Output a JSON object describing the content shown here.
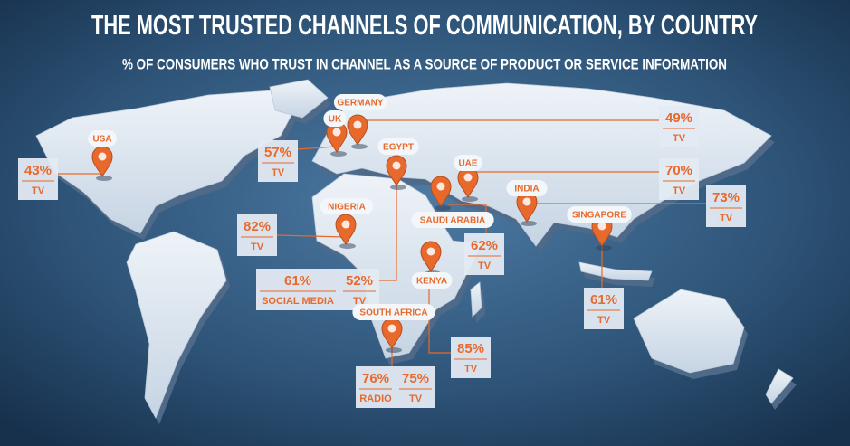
{
  "header": {
    "title": "THE MOST TRUSTED CHANNELS OF COMMUNICATION, BY COUNTRY",
    "subtitle": "% OF CONSUMERS WHO TRUST IN CHANNEL AS A SOURCE OF PRODUCT OR SERVICE INFORMATION"
  },
  "locations": [
    {
      "country": "USA",
      "stats": [
        {
          "percent": "43%",
          "channel": "TV"
        }
      ]
    },
    {
      "country": "UK",
      "stats": [
        {
          "percent": "57%",
          "channel": "TV"
        }
      ]
    },
    {
      "country": "GERMANY",
      "stats": [
        {
          "percent": "49%",
          "channel": "TV"
        }
      ]
    },
    {
      "country": "EGYPT",
      "stats": [
        {
          "percent": "61%",
          "channel": "SOCIAL MEDIA"
        },
        {
          "percent": "52%",
          "channel": "TV"
        }
      ]
    },
    {
      "country": "UAE",
      "stats": [
        {
          "percent": "70%",
          "channel": "TV"
        }
      ]
    },
    {
      "country": "SAUDI ARABIA",
      "stats": [
        {
          "percent": "62%",
          "channel": "TV"
        }
      ]
    },
    {
      "country": "INDIA",
      "stats": [
        {
          "percent": "73%",
          "channel": "TV"
        }
      ]
    },
    {
      "country": "SINGAPORE",
      "stats": [
        {
          "percent": "61%",
          "channel": "TV"
        }
      ]
    },
    {
      "country": "NIGERIA",
      "stats": [
        {
          "percent": "82%",
          "channel": "TV"
        }
      ]
    },
    {
      "country": "KENYA",
      "stats": [
        {
          "percent": "85%",
          "channel": "TV"
        }
      ]
    },
    {
      "country": "SOUTH AFRICA",
      "stats": [
        {
          "percent": "76%",
          "channel": "RADIO"
        },
        {
          "percent": "75%",
          "channel": "TV"
        }
      ]
    }
  ]
}
